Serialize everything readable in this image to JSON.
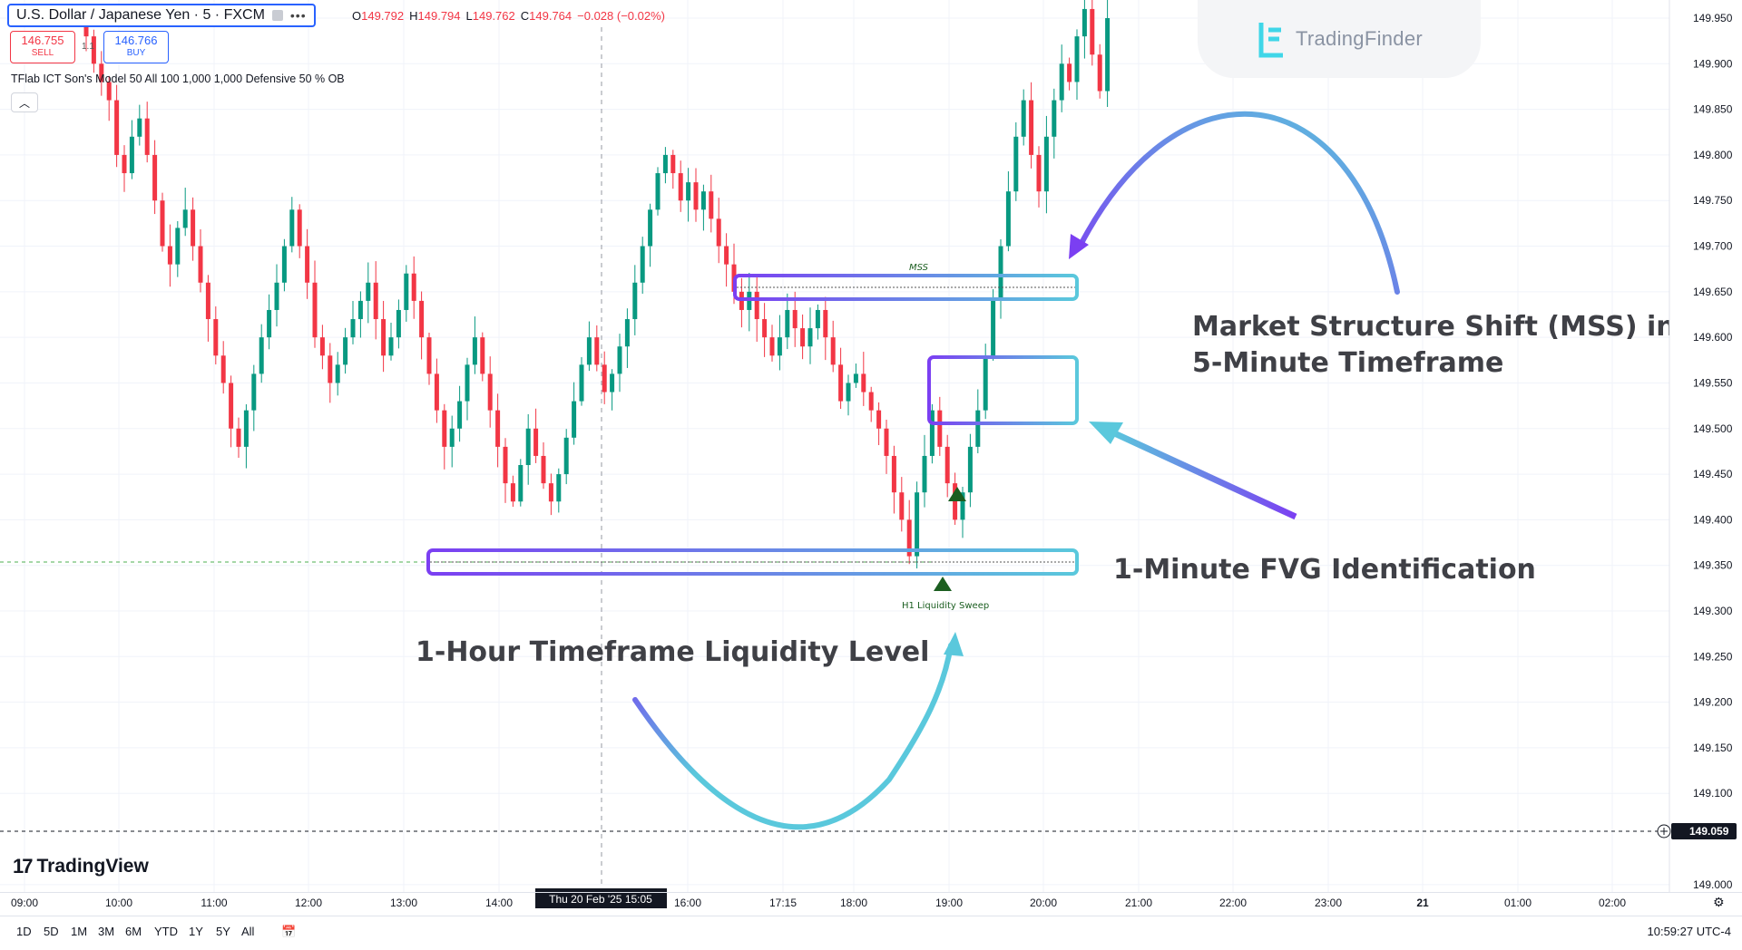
{
  "header": {
    "symbol": "U.S. Dollar / Japanese Yen · 5 · FXCM",
    "ohlc": {
      "o_label": "O",
      "o": "149.792",
      "h_label": "H",
      "h": "149.794",
      "l_label": "L",
      "l": "149.762",
      "c_label": "C",
      "c": "149.764",
      "change": "−0.028 (−0.02%)"
    },
    "sell_price": "146.755",
    "sell_label": "SELL",
    "buy_price": "146.766",
    "buy_label": "BUY",
    "spread": "1.1",
    "indicator": "TFlab ICT Son's Model 50 All 100 1,000 1,000 Defensive 50 % OB",
    "collapse_icon": "chevron-up-icon"
  },
  "watermark": {
    "brand": "TradingFinder"
  },
  "footer": {
    "brand": "TradingView",
    "ranges": [
      "1D",
      "5D",
      "1M",
      "3M",
      "6M",
      "YTD",
      "1Y",
      "5Y",
      "All"
    ],
    "clock": "10:59:27 UTC-4"
  },
  "colors": {
    "up": "#089981",
    "down": "#f23645",
    "accent": "#2962ff",
    "box_start": "#7b3ff2",
    "box_end": "#5ac8dc",
    "annotation": "#3f4046"
  },
  "chart_data": {
    "type": "candlestick",
    "symbol": "USDJPY",
    "timeframe": "5",
    "ylim": [
      149.0,
      149.97
    ],
    "y_ticks": [
      "149.950",
      "149.900",
      "149.850",
      "149.800",
      "149.750",
      "149.700",
      "149.650",
      "149.600",
      "149.550",
      "149.500",
      "149.450",
      "149.400",
      "149.350",
      "149.300",
      "149.250",
      "149.200",
      "149.150",
      "149.100",
      "149.000"
    ],
    "x_ticks": [
      "09:00",
      "10:00",
      "11:00",
      "12:00",
      "13:00",
      "14:00",
      "16:00",
      "17:15",
      "18:00",
      "19:00",
      "20:00",
      "21:00",
      "22:00",
      "23:00",
      "21",
      "01:00",
      "02:00"
    ],
    "crosshair_time": "Thu 20 Feb '25  15:05",
    "current_price": "149.059",
    "candles_close": [
      149.93,
      149.9,
      149.88,
      149.86,
      149.8,
      149.78,
      149.82,
      149.84,
      149.8,
      149.75,
      149.7,
      149.68,
      149.72,
      149.74,
      149.7,
      149.66,
      149.62,
      149.58,
      149.55,
      149.5,
      149.48,
      149.52,
      149.56,
      149.6,
      149.63,
      149.66,
      149.7,
      149.74,
      149.7,
      149.66,
      149.6,
      149.58,
      149.55,
      149.57,
      149.6,
      149.62,
      149.64,
      149.66,
      149.62,
      149.58,
      149.6,
      149.63,
      149.67,
      149.64,
      149.6,
      149.56,
      149.52,
      149.48,
      149.5,
      149.53,
      149.57,
      149.6,
      149.56,
      149.52,
      149.48,
      149.44,
      149.42,
      149.46,
      149.5,
      149.47,
      149.44,
      149.42,
      149.45,
      149.49,
      149.53,
      149.57,
      149.6,
      149.57,
      149.54,
      149.56,
      149.59,
      149.62,
      149.66,
      149.7,
      149.74,
      149.78,
      149.8,
      149.78,
      149.75,
      149.77,
      149.74,
      149.76,
      149.73,
      149.7,
      149.68,
      149.65,
      149.63,
      149.65,
      149.62,
      149.6,
      149.58,
      149.6,
      149.63,
      149.61,
      149.59,
      149.61,
      149.63,
      149.6,
      149.57,
      149.53,
      149.55,
      149.56,
      149.54,
      149.52,
      149.5,
      149.47,
      149.43,
      149.4,
      149.36,
      149.43,
      149.47,
      149.52,
      149.48,
      149.44,
      149.4,
      149.43,
      149.48,
      149.52,
      149.58,
      149.64,
      149.7,
      149.76,
      149.82,
      149.86,
      149.8,
      149.76,
      149.82,
      149.86,
      149.9,
      149.88,
      149.93,
      149.96,
      149.91,
      149.87,
      149.95
    ],
    "annotations": [
      "MSS",
      "H1 Liquidity Sweep",
      "Market Structure Shift (MSS) in the",
      "5-Minute Timeframe",
      "1-Minute FVG Identification",
      "1-Hour Timeframe Liquidity Level"
    ]
  }
}
